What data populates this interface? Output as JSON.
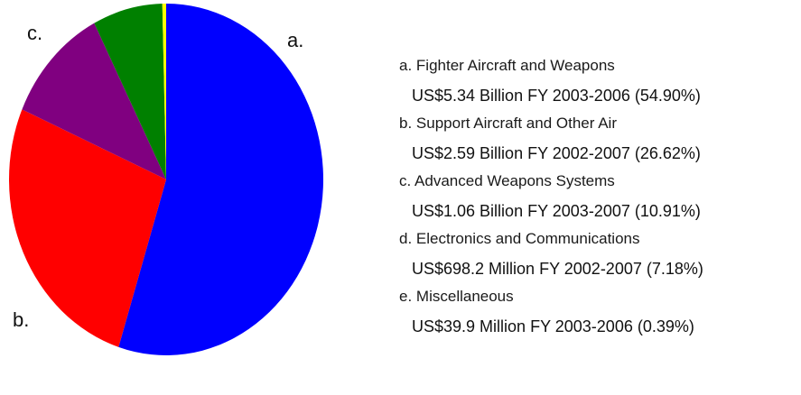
{
  "chart_data": {
    "type": "pie",
    "slices": [
      {
        "letter": "a.",
        "label": "Fighter Aircraft and Weapons",
        "amount": "US$5.34 Billion",
        "period": "FY 2003-2006",
        "percent_text": "(54.90%)",
        "value": 54.9,
        "color": "#0000ff"
      },
      {
        "letter": "b.",
        "label": "Support Aircraft and Other Air",
        "amount": "US$2.59 Billion",
        "period": "FY 2002-2007",
        "percent_text": "(26.62%)",
        "value": 26.62,
        "color": "#ff0000"
      },
      {
        "letter": "c.",
        "label": "Advanced Weapons Systems",
        "amount": "US$1.06 Billion",
        "period": "FY 2003-2007",
        "percent_text": "(10.91%)",
        "value": 10.91,
        "color": "#800080"
      },
      {
        "letter": "d.",
        "label": "Electronics and Communications",
        "amount": "US$698.2 Million",
        "period": "FY 2002-2007",
        "percent_text": "(7.18%)",
        "value": 7.18,
        "color": "#008000"
      },
      {
        "letter": "e.",
        "label": "Miscellaneous",
        "amount": "US$39.9 Million",
        "period": "FY 2003-2006",
        "percent_text": "(0.39%)",
        "value": 0.39,
        "color": "#ffff00"
      }
    ],
    "pie_labels": [
      "a.",
      "b.",
      "c."
    ],
    "legend_placement": "right"
  }
}
